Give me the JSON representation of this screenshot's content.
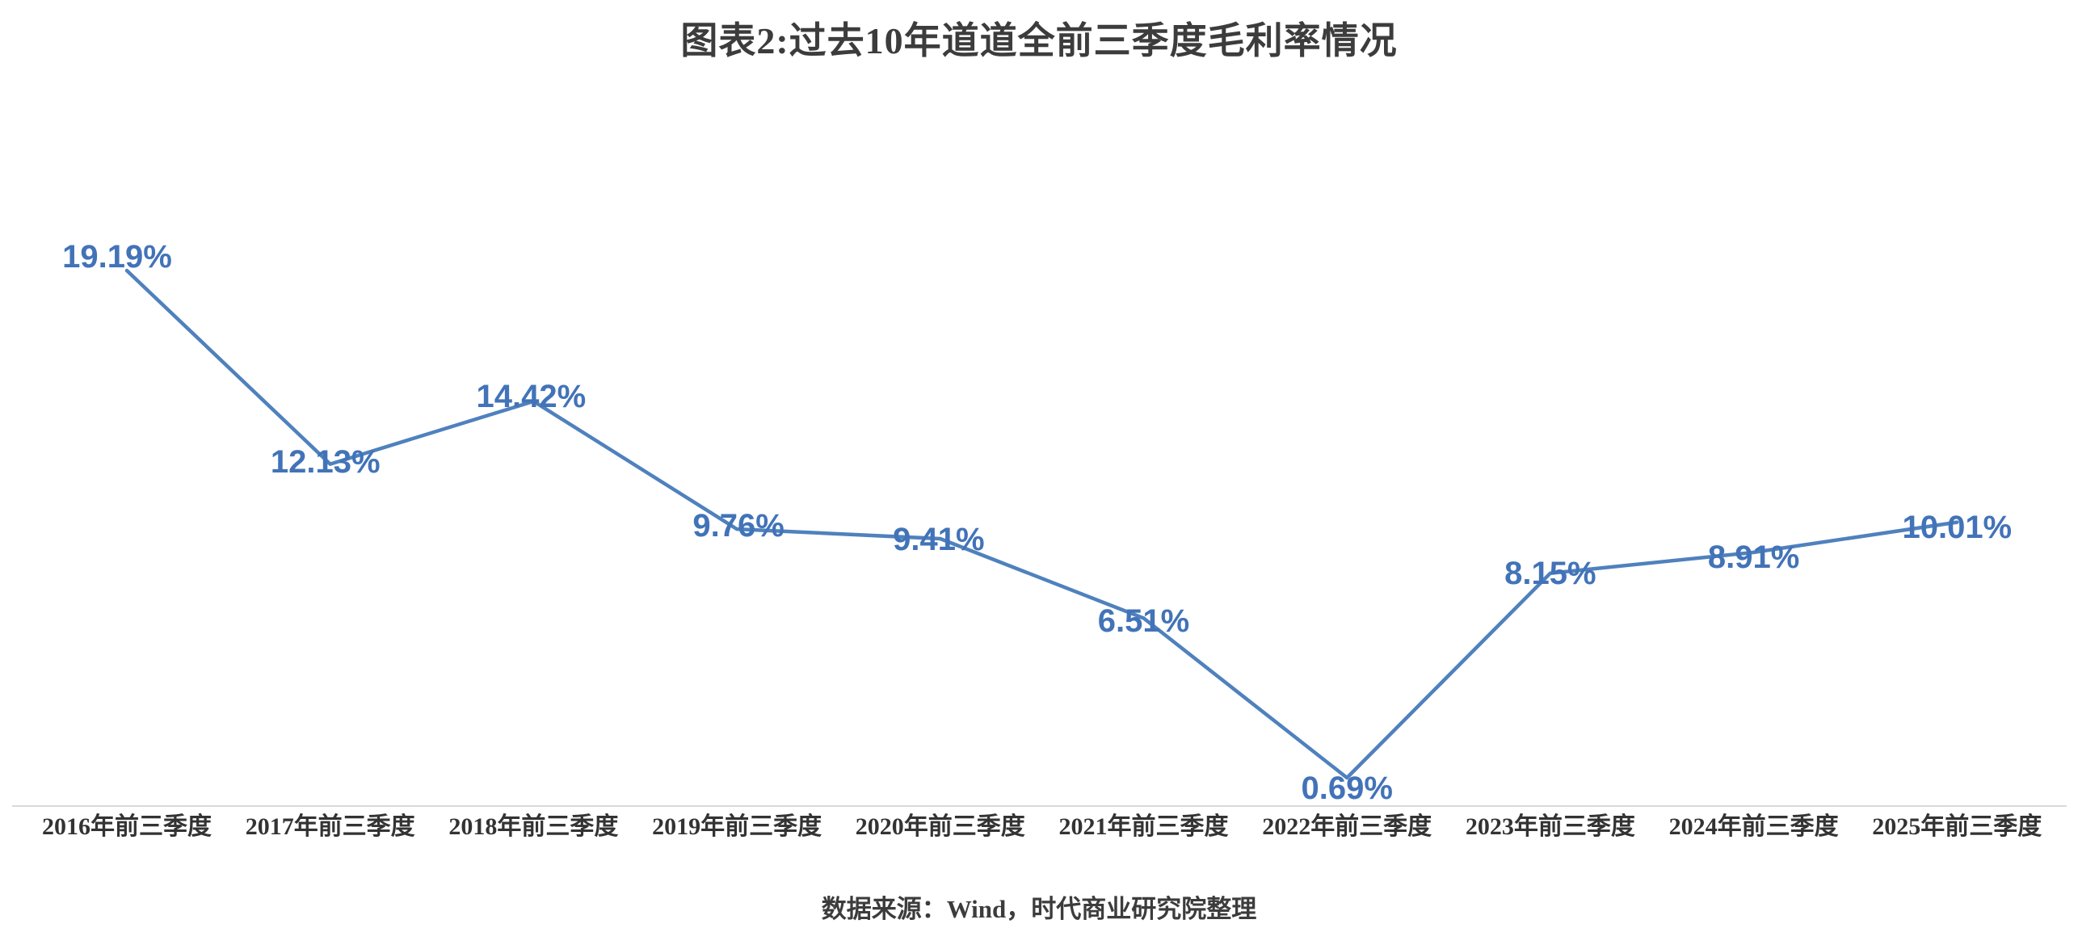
{
  "title": {
    "text": "图表2:过去10年道道全前三季度毛利率情况"
  },
  "source_note": {
    "text": "数据来源：Wind，时代商业研究院整理"
  },
  "chart_data": {
    "type": "line",
    "title": "图表2:过去10年道道全前三季度毛利率情况",
    "categories": [
      "2016年前三季度",
      "2017年前三季度",
      "2018年前三季度",
      "2019年前三季度",
      "2020年前三季度",
      "2021年前三季度",
      "2022年前三季度",
      "2023年前三季度",
      "2024年前三季度",
      "2025年前三季度"
    ],
    "series": [
      {
        "values": [
          19.19,
          12.13,
          14.42,
          9.76,
          9.41,
          6.51,
          0.69,
          8.15,
          8.91,
          10.01
        ]
      }
    ],
    "data_labels": [
      "19.19%",
      "12.13%",
      "14.42%",
      "9.76%",
      "9.41%",
      "6.51%",
      "0.69%",
      "8.15%",
      "8.91%",
      "10.01%"
    ],
    "unit": "%",
    "ylabel": "",
    "xlabel": "",
    "legend": "none",
    "grid": "off",
    "y_axis_visible": false,
    "line_color": "#4F81BD",
    "label_color": "#4273B8",
    "axis_line_color": "#D9D9D9",
    "source": "数据来源：Wind，时代商业研究院整理"
  }
}
